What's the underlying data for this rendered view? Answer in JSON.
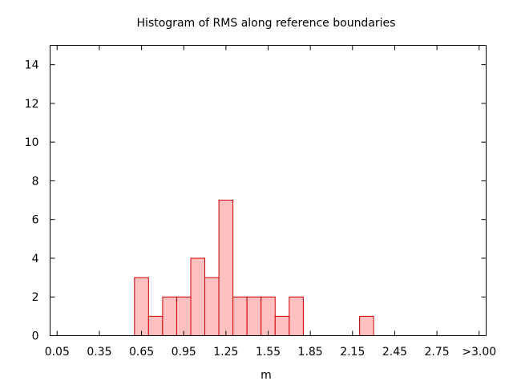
{
  "chart_data": {
    "type": "bar",
    "title": "Histogram of RMS along reference boundaries",
    "xlabel": "m",
    "ylabel": "",
    "x_range": [
      0.0,
      3.1
    ],
    "ylim": [
      0,
      15
    ],
    "y_ticks": [
      0,
      2,
      4,
      6,
      8,
      10,
      12,
      14
    ],
    "x_ticks": [
      {
        "value": 0.05,
        "label": "0.05"
      },
      {
        "value": 0.35,
        "label": "0.35"
      },
      {
        "value": 0.65,
        "label": "0.65"
      },
      {
        "value": 0.95,
        "label": "0.95"
      },
      {
        "value": 1.25,
        "label": "1.25"
      },
      {
        "value": 1.55,
        "label": "1.55"
      },
      {
        "value": 1.85,
        "label": "1.85"
      },
      {
        "value": 2.15,
        "label": "2.15"
      },
      {
        "value": 2.45,
        "label": "2.45"
      },
      {
        "value": 2.75,
        "label": "2.75"
      },
      {
        "value": 3.05,
        "label": ">3.00"
      }
    ],
    "bin_width": 0.1,
    "bins": [
      {
        "center": 0.65,
        "count": 3
      },
      {
        "center": 0.75,
        "count": 1
      },
      {
        "center": 0.85,
        "count": 2
      },
      {
        "center": 0.95,
        "count": 2
      },
      {
        "center": 1.05,
        "count": 4
      },
      {
        "center": 1.15,
        "count": 3
      },
      {
        "center": 1.25,
        "count": 7
      },
      {
        "center": 1.35,
        "count": 2
      },
      {
        "center": 1.45,
        "count": 2
      },
      {
        "center": 1.55,
        "count": 2
      },
      {
        "center": 1.65,
        "count": 1
      },
      {
        "center": 1.75,
        "count": 2
      },
      {
        "center": 2.25,
        "count": 1
      }
    ],
    "grid": false,
    "colors": {
      "bar_fill": "#ffc0c0",
      "bar_stroke": "#cc0000",
      "axis": "#000000"
    }
  }
}
